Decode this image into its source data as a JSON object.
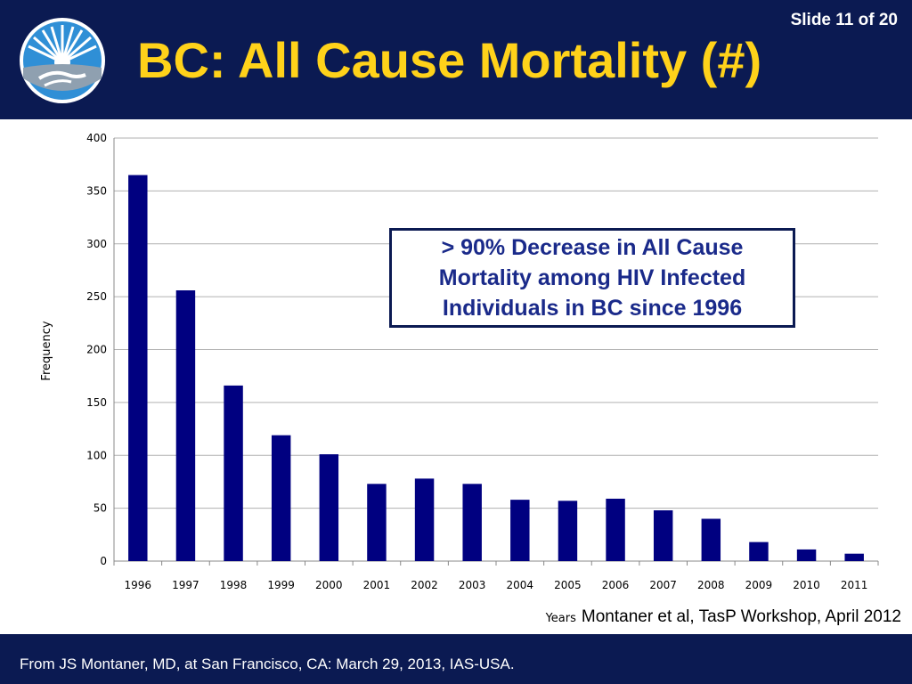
{
  "header": {
    "slide_number": "Slide 11 of 20",
    "title": "BC: All Cause Mortality (#)",
    "logo_icon": "sun-handshake-logo-icon"
  },
  "callout": {
    "text": "> 90% Decrease in All Cause Mortality among HIV Infected Individuals in BC since 1996"
  },
  "citation": "Montaner et al, TasP Workshop, April 2012",
  "footer": {
    "text": "From JS Montaner, MD, at San Francisco, CA: March 29, 2013, IAS-USA."
  },
  "colors": {
    "header_bg": "#0b1a52",
    "title": "#ffd21a",
    "bar": "#000080",
    "callout_text": "#1a2a8a"
  },
  "chart_data": {
    "type": "bar",
    "categories": [
      "1996",
      "1997",
      "1998",
      "1999",
      "2000",
      "2001",
      "2002",
      "2003",
      "2004",
      "2005",
      "2006",
      "2007",
      "2008",
      "2009",
      "2010",
      "2011"
    ],
    "values": [
      365,
      256,
      166,
      119,
      101,
      73,
      78,
      73,
      58,
      57,
      59,
      48,
      40,
      18,
      11,
      7
    ],
    "xlabel": "Years",
    "ylabel": "Frequency",
    "ylim": [
      0,
      400
    ],
    "yticks": [
      0,
      50,
      100,
      150,
      200,
      250,
      300,
      350,
      400
    ],
    "grid": true,
    "legend": "none"
  }
}
